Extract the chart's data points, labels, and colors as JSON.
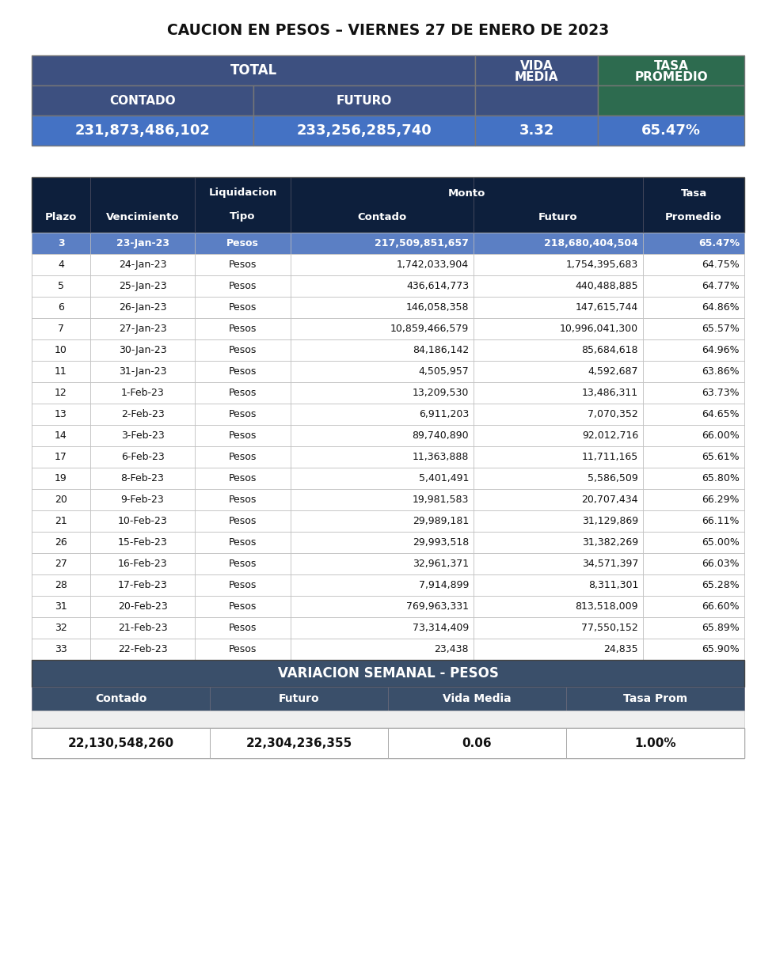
{
  "title": "CAUCION EN PESOS – VIERNES 27 DE ENERO DE 2023",
  "summary_values": [
    "231,873,486,102",
    "233,256,285,740",
    "3.32",
    "65.47%"
  ],
  "summary_color_total": "#3d5080",
  "summary_color_tasa": "#2d6b4f",
  "summary_color_values": "#4472c4",
  "detail_header_bg": "#0d1f3c",
  "detail_header_fg": "#ffffff",
  "detail_row_highlight_bg": "#5b7fc4",
  "detail_row_highlight_fg": "#ffffff",
  "detail_row_normal_bg": "#ffffff",
  "detail_row_normal_fg": "#111111",
  "rows": [
    [
      "3",
      "23-Jan-23",
      "Pesos",
      "217,509,851,657",
      "218,680,404,504",
      "65.47%"
    ],
    [
      "4",
      "24-Jan-23",
      "Pesos",
      "1,742,033,904",
      "1,754,395,683",
      "64.75%"
    ],
    [
      "5",
      "25-Jan-23",
      "Pesos",
      "436,614,773",
      "440,488,885",
      "64.77%"
    ],
    [
      "6",
      "26-Jan-23",
      "Pesos",
      "146,058,358",
      "147,615,744",
      "64.86%"
    ],
    [
      "7",
      "27-Jan-23",
      "Pesos",
      "10,859,466,579",
      "10,996,041,300",
      "65.57%"
    ],
    [
      "10",
      "30-Jan-23",
      "Pesos",
      "84,186,142",
      "85,684,618",
      "64.96%"
    ],
    [
      "11",
      "31-Jan-23",
      "Pesos",
      "4,505,957",
      "4,592,687",
      "63.86%"
    ],
    [
      "12",
      "1-Feb-23",
      "Pesos",
      "13,209,530",
      "13,486,311",
      "63.73%"
    ],
    [
      "13",
      "2-Feb-23",
      "Pesos",
      "6,911,203",
      "7,070,352",
      "64.65%"
    ],
    [
      "14",
      "3-Feb-23",
      "Pesos",
      "89,740,890",
      "92,012,716",
      "66.00%"
    ],
    [
      "17",
      "6-Feb-23",
      "Pesos",
      "11,363,888",
      "11,711,165",
      "65.61%"
    ],
    [
      "19",
      "8-Feb-23",
      "Pesos",
      "5,401,491",
      "5,586,509",
      "65.80%"
    ],
    [
      "20",
      "9-Feb-23",
      "Pesos",
      "19,981,583",
      "20,707,434",
      "66.29%"
    ],
    [
      "21",
      "10-Feb-23",
      "Pesos",
      "29,989,181",
      "31,129,869",
      "66.11%"
    ],
    [
      "26",
      "15-Feb-23",
      "Pesos",
      "29,993,518",
      "31,382,269",
      "65.00%"
    ],
    [
      "27",
      "16-Feb-23",
      "Pesos",
      "32,961,371",
      "34,571,397",
      "66.03%"
    ],
    [
      "28",
      "17-Feb-23",
      "Pesos",
      "7,914,899",
      "8,311,301",
      "65.28%"
    ],
    [
      "31",
      "20-Feb-23",
      "Pesos",
      "769,963,331",
      "813,518,009",
      "66.60%"
    ],
    [
      "32",
      "21-Feb-23",
      "Pesos",
      "73,314,409",
      "77,550,152",
      "65.89%"
    ],
    [
      "33",
      "22-Feb-23",
      "Pesos",
      "23,438",
      "24,835",
      "65.90%"
    ]
  ],
  "variacion_title": "VARIACION SEMANAL - PESOS",
  "variacion_headers": [
    "Contado",
    "Futuro",
    "Vida Media",
    "Tasa Prom"
  ],
  "variacion_values": [
    "22,130,548,260",
    "22,304,236,355",
    "0.06",
    "1.00%"
  ],
  "variacion_header_bg": "#3a4f6a",
  "variacion_title_bg": "#3a4f6a"
}
